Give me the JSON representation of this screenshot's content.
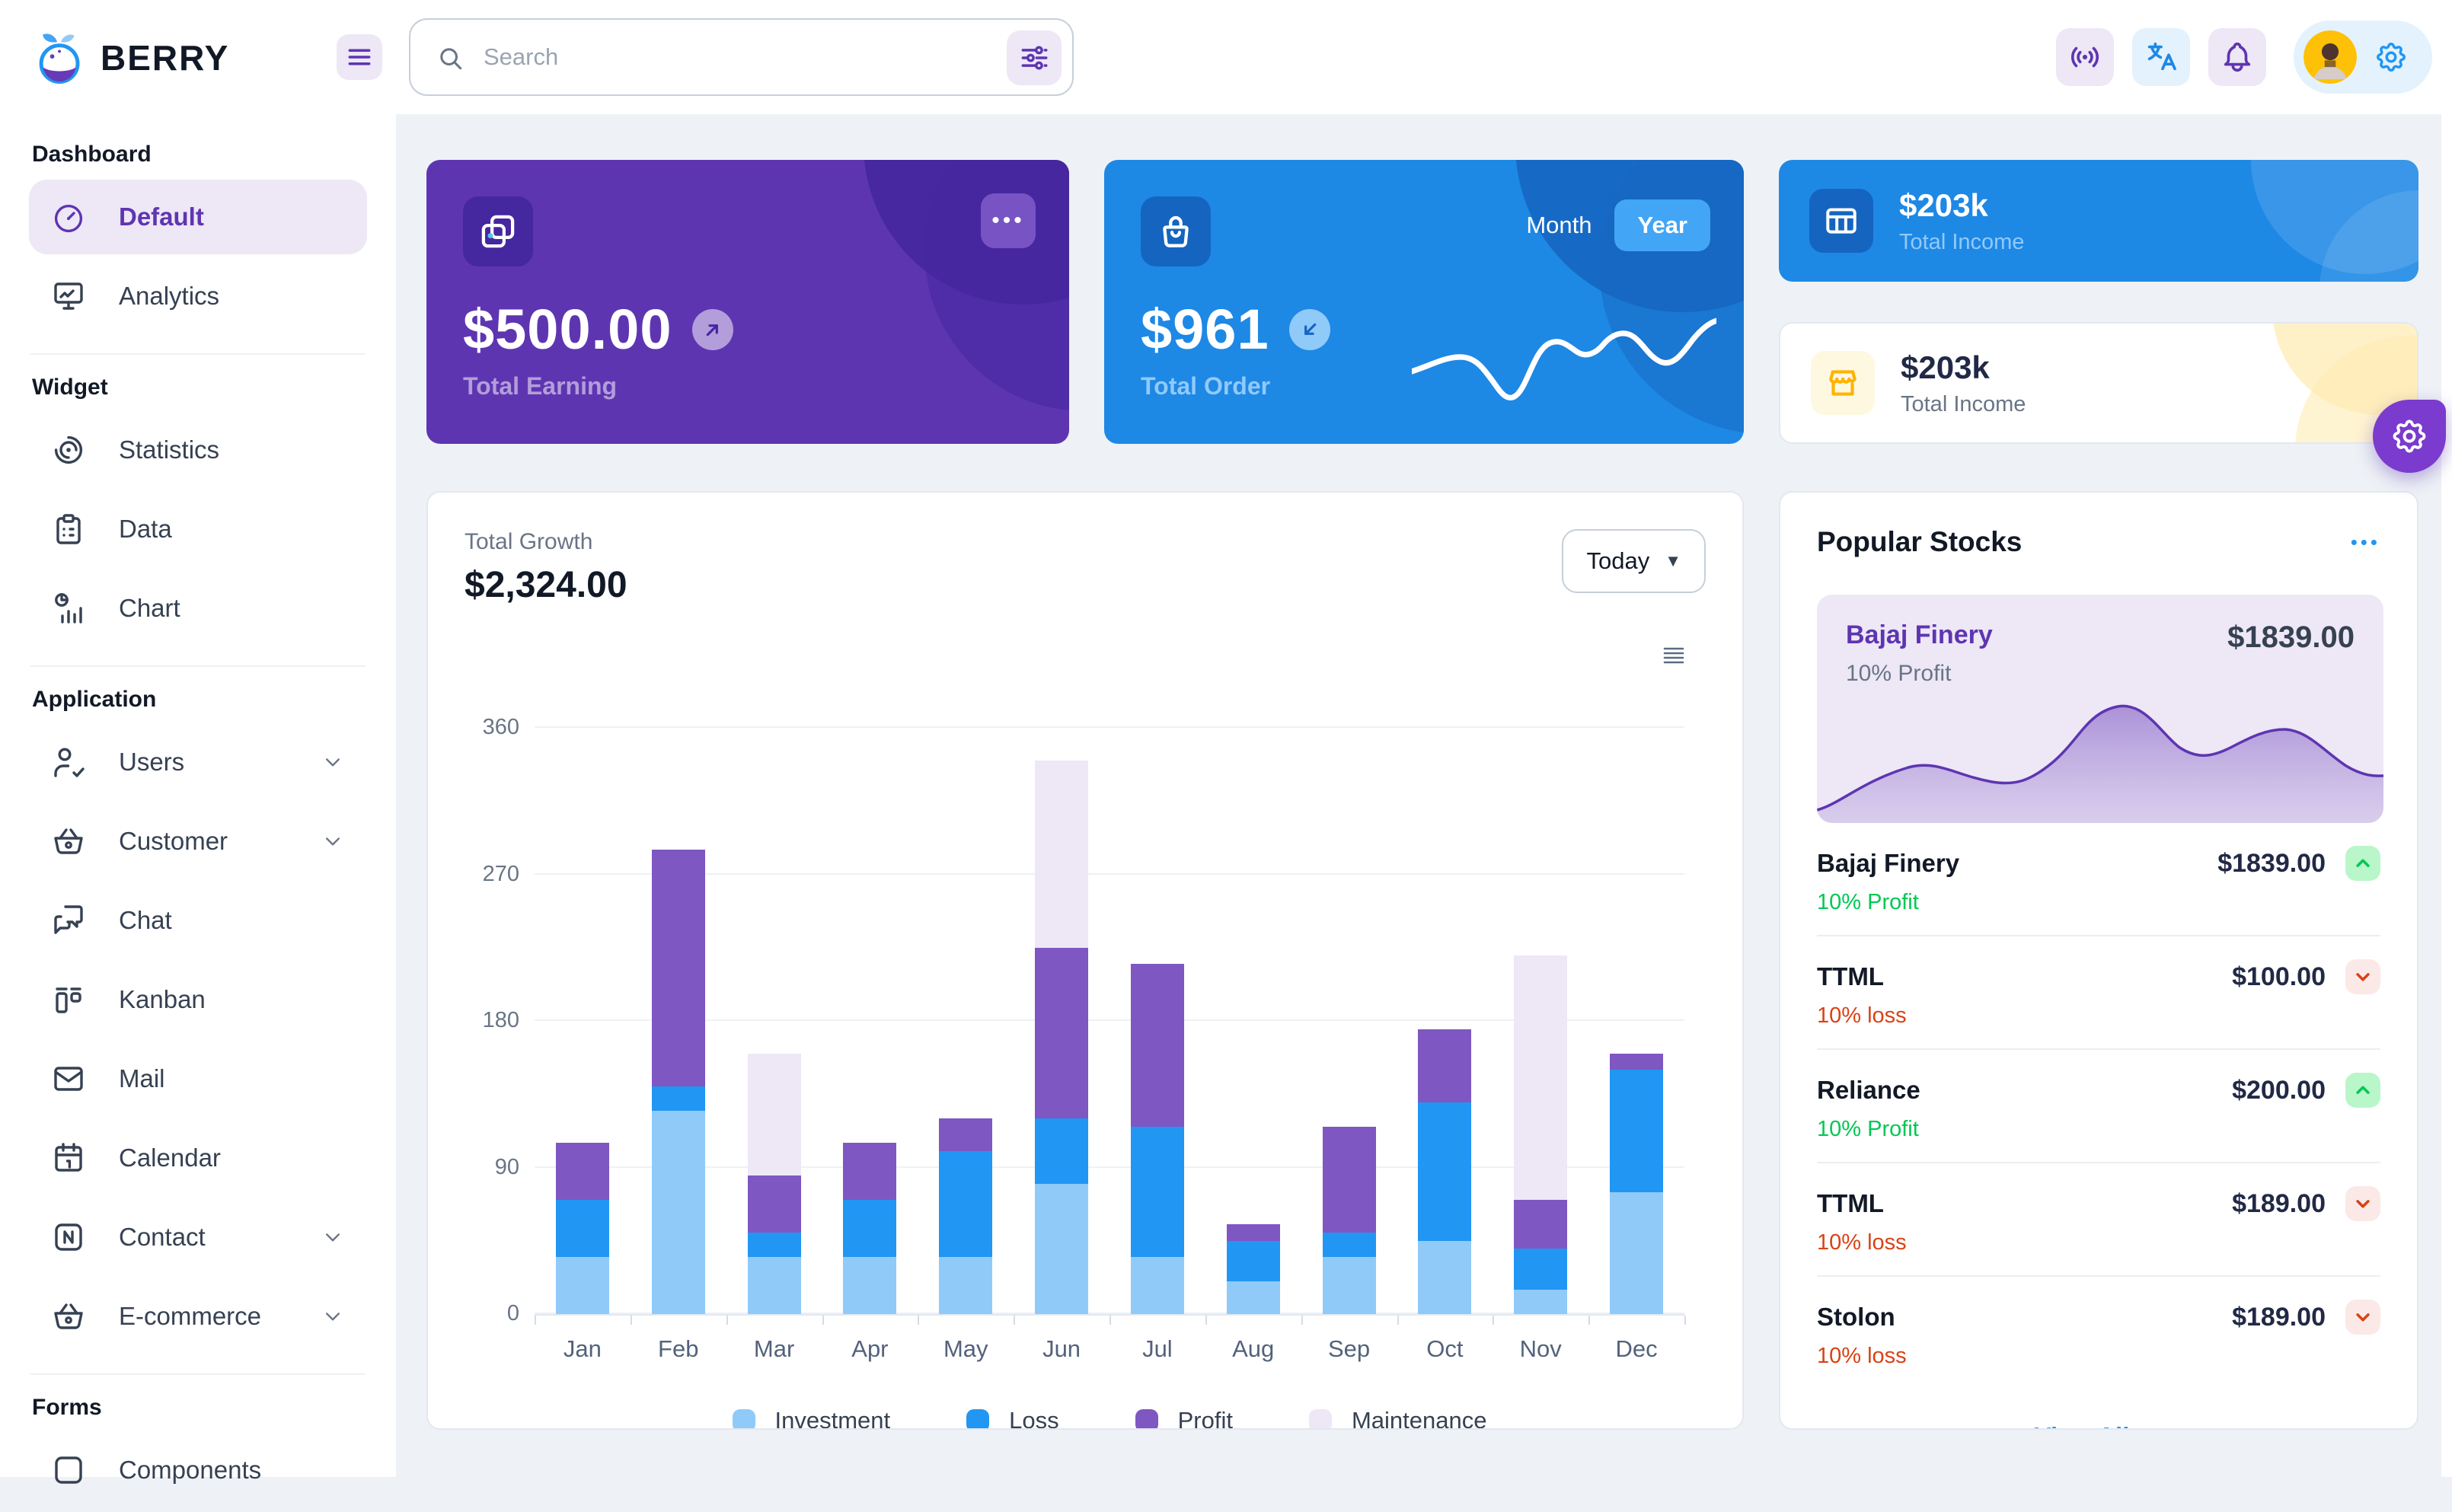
{
  "brand": {
    "name": "BERRY"
  },
  "topbar": {
    "search": {
      "placeholder": "Search"
    },
    "icons": [
      "broadcast-icon",
      "translate-icon",
      "bell-icon",
      "avatar",
      "gear-icon"
    ]
  },
  "colors": {
    "page_bg": "#EEF2F6",
    "primary": "#2196F3",
    "primary_dark": "#1E88E5",
    "secondary": "#673AB7",
    "secondary_dark": "#5E35B1",
    "secondary_light": "#EDE7F6",
    "success": "#00C853",
    "error": "#D84315",
    "warning": "#FFC107"
  },
  "sidebar": {
    "sections": [
      {
        "caption": "Dashboard",
        "items": [
          {
            "label": "Default",
            "icon": "dashboard-icon",
            "active": true
          },
          {
            "label": "Analytics",
            "icon": "analytics-icon"
          }
        ]
      },
      {
        "caption": "Widget",
        "items": [
          {
            "label": "Statistics",
            "icon": "statistics-icon"
          },
          {
            "label": "Data",
            "icon": "data-icon"
          },
          {
            "label": "Chart",
            "icon": "chart-icon"
          }
        ]
      },
      {
        "caption": "Application",
        "items": [
          {
            "label": "Users",
            "icon": "users-icon",
            "expandable": true
          },
          {
            "label": "Customer",
            "icon": "customer-icon",
            "expandable": true
          },
          {
            "label": "Chat",
            "icon": "chat-icon"
          },
          {
            "label": "Kanban",
            "icon": "kanban-icon"
          },
          {
            "label": "Mail",
            "icon": "mail-icon"
          },
          {
            "label": "Calendar",
            "icon": "calendar-icon"
          },
          {
            "label": "Contact",
            "icon": "contact-icon",
            "expandable": true
          },
          {
            "label": "E-commerce",
            "icon": "ecommerce-icon",
            "expandable": true
          }
        ]
      },
      {
        "caption": "Forms",
        "items": [
          {
            "label": "Components",
            "icon": "components-icon"
          }
        ]
      }
    ]
  },
  "cards": {
    "earning": {
      "value": "$500.00",
      "label": "Total Earning",
      "menu": "•••",
      "trend": "up"
    },
    "order": {
      "value": "$961",
      "label": "Total Order",
      "trend": "down",
      "toggle": {
        "options": [
          "Month",
          "Year"
        ],
        "selected": "Year"
      }
    },
    "income_primary": {
      "value": "$203k",
      "label": "Total Income"
    },
    "income_warning": {
      "value": "$203k",
      "label": "Total Income"
    }
  },
  "growth": {
    "title": "Total Growth",
    "value": "$2,324.00",
    "period": "Today"
  },
  "chart_data": {
    "type": "bar",
    "stacked": true,
    "title": "Total Growth",
    "categories": [
      "Jan",
      "Feb",
      "Mar",
      "Apr",
      "May",
      "Jun",
      "Jul",
      "Aug",
      "Sep",
      "Oct",
      "Nov",
      "Dec"
    ],
    "series": [
      {
        "name": "Investment",
        "color": "#90CAF9",
        "values": [
          35,
          125,
          35,
          35,
          35,
          80,
          35,
          20,
          35,
          45,
          15,
          75
        ]
      },
      {
        "name": "Loss",
        "color": "#2196F3",
        "values": [
          35,
          15,
          15,
          35,
          65,
          40,
          80,
          25,
          15,
          85,
          25,
          75
        ]
      },
      {
        "name": "Profit",
        "color": "#7E57C2",
        "values": [
          35,
          145,
          35,
          35,
          20,
          105,
          100,
          10,
          65,
          45,
          30,
          10
        ]
      },
      {
        "name": "Maintenance",
        "color": "#EDE7F6",
        "values": [
          0,
          0,
          75,
          0,
          0,
          115,
          0,
          0,
          0,
          0,
          150,
          0
        ]
      }
    ],
    "xlabel": "",
    "ylabel": "",
    "ylim": [
      0,
      360
    ],
    "yticks": [
      0,
      90,
      180,
      270,
      360
    ],
    "grid": true,
    "legend_position": "bottom"
  },
  "stocks": {
    "title": "Popular Stocks",
    "menu": "•••",
    "highlight": {
      "name": "Bajaj Finery",
      "sub": "10% Profit",
      "price": "$1839.00"
    },
    "rows": [
      {
        "name": "Bajaj Finery",
        "sub": "10% Profit",
        "price": "$1839.00",
        "trend": "up"
      },
      {
        "name": "TTML",
        "sub": "10% loss",
        "price": "$100.00",
        "trend": "down"
      },
      {
        "name": "Reliance",
        "sub": "10% Profit",
        "price": "$200.00",
        "trend": "up"
      },
      {
        "name": "TTML",
        "sub": "10% loss",
        "price": "$189.00",
        "trend": "down"
      },
      {
        "name": "Stolon",
        "sub": "10% loss",
        "price": "$189.00",
        "trend": "down"
      }
    ],
    "view_all": "View All"
  }
}
